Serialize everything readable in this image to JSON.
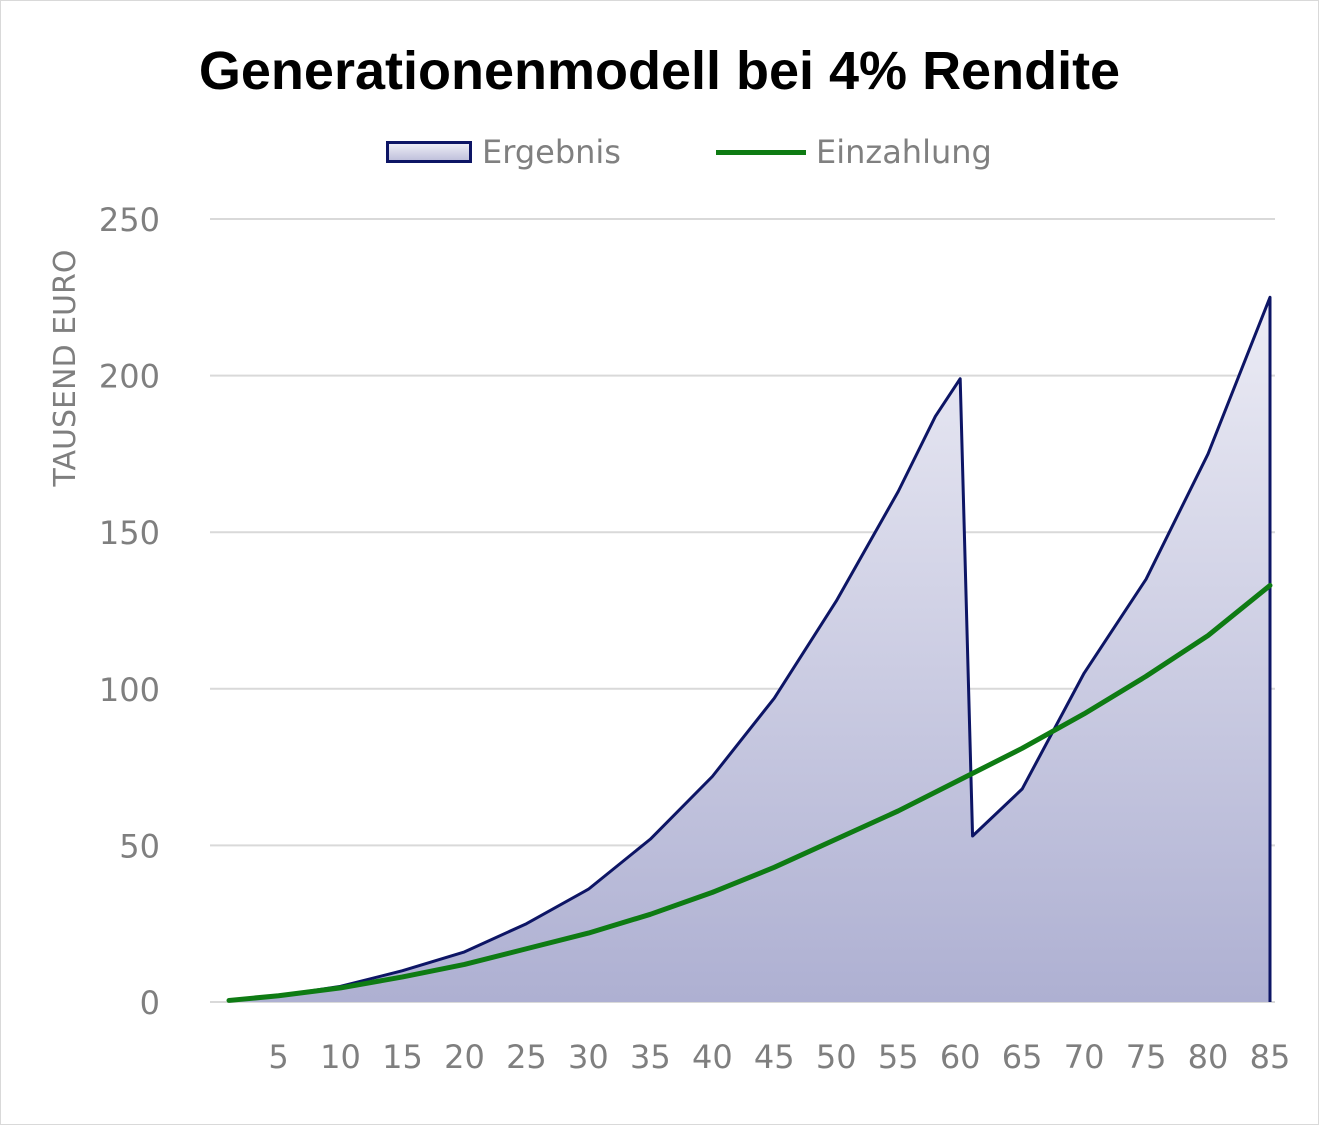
{
  "chart_data": {
    "type": "area",
    "title": "Generationenmodell bei 4% Rendite",
    "ylabel": "TAUSEND EURO",
    "xlabel": "",
    "ylim": [
      0,
      250
    ],
    "xlim": [
      1,
      85
    ],
    "yticks": [
      0,
      50,
      100,
      150,
      200,
      250
    ],
    "xticks": [
      5,
      10,
      15,
      20,
      25,
      30,
      35,
      40,
      45,
      50,
      55,
      60,
      65,
      70,
      75,
      80,
      85
    ],
    "grid": true,
    "legend_position": "top",
    "series": [
      {
        "name": "Ergebnis",
        "kind": "area",
        "color": "#0d1565",
        "fill_top": "#ececf5",
        "fill_bottom": "#aeb0d2",
        "points": [
          [
            1,
            0.5
          ],
          [
            5,
            2
          ],
          [
            10,
            5
          ],
          [
            15,
            10
          ],
          [
            20,
            16
          ],
          [
            25,
            25
          ],
          [
            30,
            36
          ],
          [
            35,
            52
          ],
          [
            40,
            72
          ],
          [
            45,
            97
          ],
          [
            50,
            128
          ],
          [
            55,
            163
          ],
          [
            58,
            187
          ],
          [
            60,
            199
          ],
          [
            61,
            53
          ],
          [
            65,
            68
          ],
          [
            70,
            105
          ],
          [
            75,
            135
          ],
          [
            80,
            175
          ],
          [
            83,
            205
          ],
          [
            85,
            225
          ],
          [
            85,
            0
          ]
        ]
      },
      {
        "name": "Einzahlung",
        "kind": "line",
        "color": "#0e7b13",
        "points": [
          [
            1,
            0.5
          ],
          [
            5,
            2
          ],
          [
            10,
            4.5
          ],
          [
            15,
            8
          ],
          [
            20,
            12
          ],
          [
            25,
            17
          ],
          [
            30,
            22
          ],
          [
            35,
            28
          ],
          [
            40,
            35
          ],
          [
            45,
            43
          ],
          [
            50,
            52
          ],
          [
            55,
            61
          ],
          [
            60,
            71
          ],
          [
            65,
            81
          ],
          [
            70,
            92
          ],
          [
            75,
            104
          ],
          [
            80,
            117
          ],
          [
            85,
            133
          ]
        ]
      }
    ]
  }
}
